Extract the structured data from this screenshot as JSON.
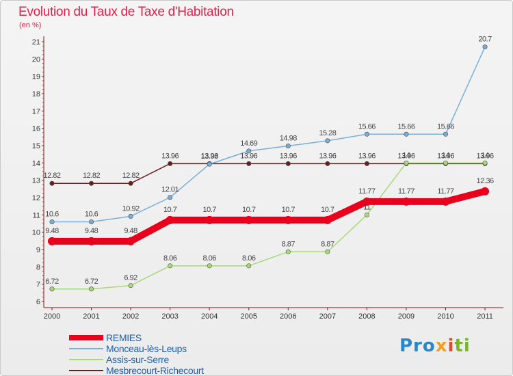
{
  "title": "Evolution du Taux de Taxe d'Habitation",
  "unit_label": "(en %)",
  "logo": {
    "parts": [
      "Pro",
      "x",
      "i",
      "ti"
    ],
    "colors": [
      "#2a86c8",
      "#f0a020",
      "#e24a2a",
      "#7ab528"
    ]
  },
  "chart_data": {
    "type": "line",
    "title": "Evolution du Taux de Taxe d'Habitation",
    "ylabel": "(en %)",
    "xlabel": "",
    "x": [
      "2000",
      "2001",
      "2002",
      "2003",
      "2004",
      "2005",
      "2006",
      "2007",
      "2008",
      "2009",
      "2010",
      "2011"
    ],
    "ylim": [
      6,
      21
    ],
    "yticks": [
      6,
      7,
      8,
      9,
      10,
      11,
      12,
      13,
      14,
      15,
      16,
      17,
      18,
      19,
      20,
      21
    ],
    "grid": false,
    "legend_position": "bottom-left",
    "series": [
      {
        "name": "Mesbrecourt-Richecourt",
        "color": "#6a1e1e",
        "emphasis": false,
        "values": [
          12.82,
          12.82,
          12.82,
          13.96,
          13.96,
          13.96,
          13.96,
          13.96,
          13.96,
          13.96,
          13.96,
          13.96
        ],
        "labels": [
          "12.82",
          "12.82",
          "12.82",
          "13.96",
          "13.96",
          "13.96",
          "13.96",
          "13.96",
          "13.96",
          "13.96",
          "13.96",
          "13.96"
        ]
      },
      {
        "name": "Assis-sur-Serre",
        "color": "#a8d878",
        "emphasis": false,
        "values": [
          6.72,
          6.72,
          6.92,
          8.06,
          8.06,
          8.06,
          8.87,
          8.87,
          11,
          14,
          14,
          14
        ],
        "labels": [
          "6.72",
          "6.72",
          "6.92",
          "8.06",
          "8.06",
          "8.06",
          "8.87",
          "8.87",
          "11",
          "14",
          "14",
          "14"
        ]
      },
      {
        "name": "Monceau-lès-Leups",
        "color": "#7aaed6",
        "emphasis": false,
        "values": [
          10.6,
          10.6,
          10.92,
          12.01,
          13.93,
          14.69,
          14.98,
          15.28,
          15.66,
          15.66,
          15.66,
          20.7
        ],
        "labels": [
          "10.6",
          "10.6",
          "10.92",
          "12.01",
          "13.93",
          "14.69",
          "14.98",
          "15.28",
          "15.66",
          "15.66",
          "15.66",
          "20.7"
        ]
      },
      {
        "name": "REMIES",
        "color": "#e8001c",
        "emphasis": true,
        "values": [
          9.48,
          9.48,
          9.48,
          10.7,
          10.7,
          10.7,
          10.7,
          10.7,
          11.77,
          11.77,
          11.77,
          12.36
        ],
        "labels": [
          "9.48",
          "9.48",
          "9.48",
          "10.7",
          "10.7",
          "10.7",
          "10.7",
          "10.7",
          "11.77",
          "11.77",
          "11.77",
          "12.36"
        ]
      }
    ],
    "legend": [
      "REMIES",
      "Monceau-lès-Leups",
      "Assis-sur-Serre",
      "Mesbrecourt-Richecourt"
    ]
  }
}
